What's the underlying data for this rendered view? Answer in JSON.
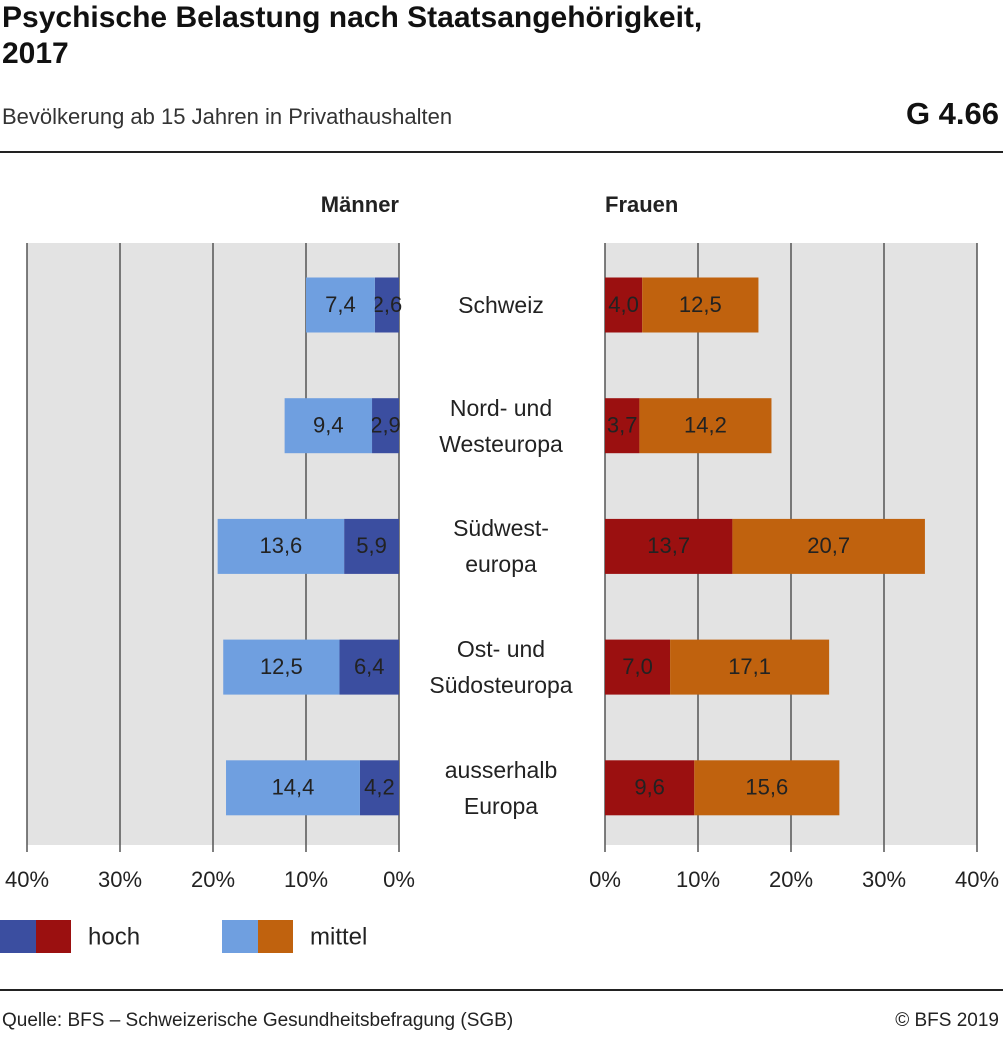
{
  "header": {
    "title": "Psychische Belastung nach Staatsangehörigkeit,\n2017",
    "subtitle": "Bevölkerung ab 15 Jahren in Privathaushalten",
    "code": "G 4.66"
  },
  "footer": {
    "source": "Quelle: BFS – Schweizerische Gesundheitsbefragung (SGB)",
    "copyright": "© BFS 2019"
  },
  "chart_data": [
    {
      "type": "bar",
      "orientation": "horizontal",
      "stacked": true,
      "title": "Männer",
      "categories": [
        "Schweiz",
        "Nord- und\nWesteuropa",
        "Südwest-\neuropa",
        "Ost- und\nSüdosteuropa",
        "ausserhalb\nEuropa"
      ],
      "series": [
        {
          "name": "hoch",
          "color": "#3b4ea0",
          "values": [
            2.6,
            2.9,
            5.9,
            6.4,
            4.2
          ],
          "value_labels": [
            "2,6",
            "2,9",
            "5,9",
            "6,4",
            "4,2"
          ]
        },
        {
          "name": "mittel",
          "color": "#6f9fe0",
          "values": [
            7.4,
            9.4,
            13.6,
            12.5,
            14.4
          ],
          "value_labels": [
            "7,4",
            "9,4",
            "13,6",
            "12,5",
            "14,4"
          ]
        }
      ],
      "xlim": [
        40,
        0
      ],
      "xticks": [
        {
          "value": 40,
          "label": "40%"
        },
        {
          "value": 30,
          "label": "30%"
        },
        {
          "value": 20,
          "label": "20%"
        },
        {
          "value": 10,
          "label": "10%"
        },
        {
          "value": 0,
          "label": "0%"
        }
      ],
      "grid": true
    },
    {
      "type": "bar",
      "orientation": "horizontal",
      "stacked": true,
      "title": "Frauen",
      "series": [
        {
          "color": "#9b1010",
          "values": [
            4.0,
            3.7,
            13.7,
            7.0,
            9.6
          ],
          "value_labels": [
            "4,0",
            "3,7",
            "13,7",
            "7,0",
            "9,6"
          ]
        },
        {
          "color": "#c0620e",
          "values": [
            12.5,
            14.2,
            20.7,
            17.1,
            15.6
          ],
          "value_labels": [
            "12,5",
            "14,2",
            "20,7",
            "17,1",
            "15,6"
          ]
        }
      ],
      "xlim": [
        0,
        40
      ],
      "xticks": [
        {
          "value": 0,
          "label": "0%"
        },
        {
          "value": 10,
          "label": "10%"
        },
        {
          "value": 20,
          "label": "20%"
        },
        {
          "value": 30,
          "label": "30%"
        },
        {
          "value": 40,
          "label": "40%"
        }
      ],
      "grid": true
    }
  ]
}
